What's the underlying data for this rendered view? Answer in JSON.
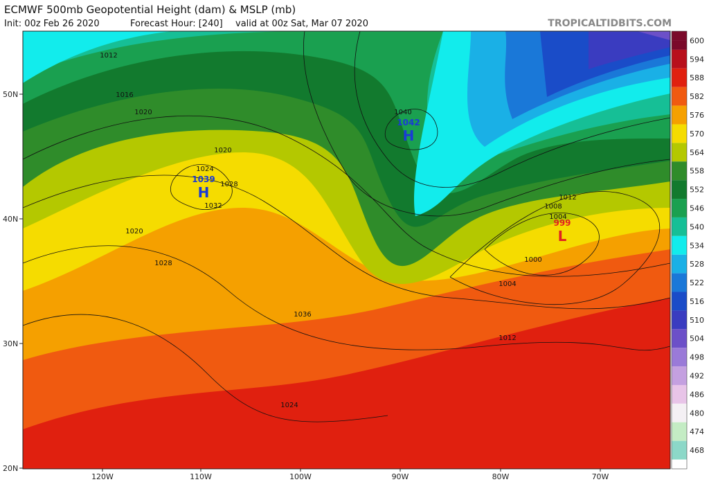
{
  "header": {
    "title": "ECMWF 500mb Geopotential Height (dam) & MSLP (mb)",
    "init": "Init: 00z Feb 26 2020",
    "forecast": "Forecast Hour: [240]",
    "valid": "valid at 00z Sat, Mar 07 2020",
    "credit": "TROPICALTIDBITS.COM"
  },
  "colorbar": {
    "labels": [
      600,
      594,
      588,
      582,
      576,
      570,
      564,
      558,
      552,
      546,
      540,
      534,
      528,
      522,
      516,
      510,
      504,
      498,
      492,
      486,
      480,
      474,
      468
    ],
    "colors": [
      "#7a0a2a",
      "#b8101c",
      "#e0200f",
      "#f05a10",
      "#f5a000",
      "#f5dc00",
      "#b4c800",
      "#2f8c2a",
      "#127a2e",
      "#1aa050",
      "#16bf96",
      "#12ecec",
      "#1ab0e6",
      "#1a78d8",
      "#1a4cc8",
      "#3a3cc0",
      "#6c50c8",
      "#9a7ad8",
      "#c4a0e0",
      "#e8c4e8",
      "#f4f0f4",
      "#c4ecc4",
      "#8cd8c8"
    ]
  },
  "lat_labels": [
    "50N",
    "40N",
    "30N",
    "20N"
  ],
  "lon_labels": [
    "120W",
    "110W",
    "100W",
    "90W",
    "80W",
    "70W"
  ],
  "pressure_centers": [
    {
      "letter": "H",
      "value": "1042"
    },
    {
      "letter": "H",
      "value": "1039"
    },
    {
      "letter": "L",
      "value": "999"
    }
  ],
  "contour_labels": [
    "1012",
    "1016",
    "1020",
    "1020",
    "1024",
    "1028",
    "1032",
    "1020",
    "1028",
    "1036",
    "1040",
    "1012",
    "1008",
    "1004",
    "1000",
    "1004",
    "1012",
    "1024"
  ]
}
